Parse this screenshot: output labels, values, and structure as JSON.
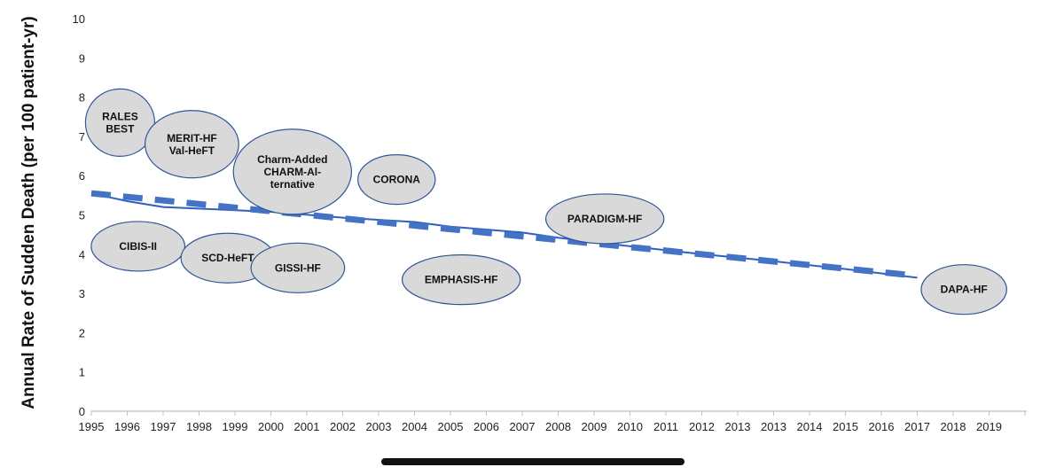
{
  "chart_data": {
    "type": "line",
    "ylabel": "Annual Rate of Sudden Death (per 100 patient-yr)",
    "ylim": [
      0,
      10
    ],
    "y_ticks": [
      "0",
      "1",
      "2",
      "3",
      "4",
      "5",
      "6",
      "7",
      "8",
      "9",
      "10"
    ],
    "x_tick_labels": [
      "1995",
      "1996",
      "1997",
      "1998",
      "1999",
      "2000",
      "2001",
      "2002",
      "2003",
      "2004",
      "2005",
      "2006",
      "2007",
      "2008",
      "2009",
      "2010",
      "2011",
      "2012",
      "2013",
      "2013",
      "2014",
      "2015",
      "2016",
      "2017",
      "2018",
      "2019"
    ],
    "grid": false,
    "series": [
      {
        "style": "solid",
        "color": "#2f5fbf",
        "x_index": [
          0,
          1,
          2,
          5,
          7,
          9,
          10,
          12,
          13,
          15,
          17,
          19,
          21,
          23
        ],
        "values": [
          5.55,
          5.35,
          5.2,
          5.08,
          4.93,
          4.82,
          4.7,
          4.55,
          4.42,
          4.2,
          4.0,
          3.82,
          3.62,
          3.4
        ]
      },
      {
        "style": "dashed",
        "color": "#4472c4",
        "x_index": [
          0,
          23
        ],
        "values": [
          5.55,
          3.45
        ]
      }
    ],
    "annotations": [
      {
        "lines": [
          "RALES",
          "BEST"
        ],
        "x_index": 0.8,
        "y": 7.35
      },
      {
        "lines": [
          "MERIT-HF",
          "Val-HeFT"
        ],
        "x_index": 2.8,
        "y": 6.8
      },
      {
        "lines": [
          "Charm-Added",
          "CHARM-Al-",
          "ternative"
        ],
        "x_index": 5.6,
        "y": 6.1
      },
      {
        "lines": [
          "CORONA"
        ],
        "x_index": 8.5,
        "y": 5.9
      },
      {
        "lines": [
          "PARADIGM-HF"
        ],
        "x_index": 14.3,
        "y": 4.9
      },
      {
        "lines": [
          "CIBIS-II"
        ],
        "x_index": 1.3,
        "y": 4.2
      },
      {
        "lines": [
          "SCD-HeFT"
        ],
        "x_index": 3.8,
        "y": 3.9
      },
      {
        "lines": [
          "GISSI-HF"
        ],
        "x_index": 5.75,
        "y": 3.65
      },
      {
        "lines": [
          "EMPHASIS-HF"
        ],
        "x_index": 10.3,
        "y": 3.35
      },
      {
        "lines": [
          "DAPA-HF"
        ],
        "x_index": 24.3,
        "y": 3.1
      }
    ],
    "bubble_color": "#d9d9d9",
    "bubble_stroke": "#2f5597"
  }
}
